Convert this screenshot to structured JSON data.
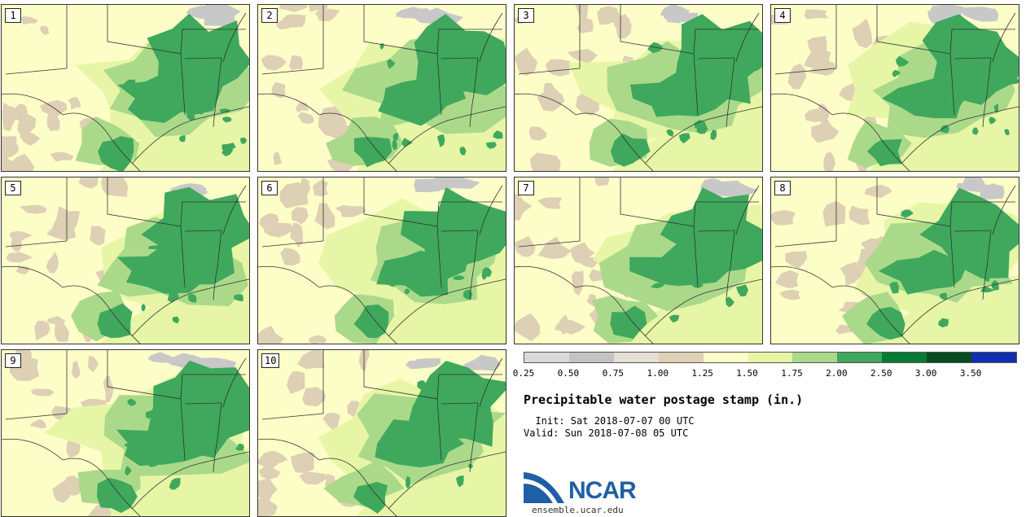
{
  "stamps": [
    {
      "label": "1"
    },
    {
      "label": "2"
    },
    {
      "label": "3"
    },
    {
      "label": "4"
    },
    {
      "label": "5"
    },
    {
      "label": "6"
    },
    {
      "label": "7"
    },
    {
      "label": "8"
    },
    {
      "label": "9"
    },
    {
      "label": "10"
    }
  ],
  "colorbar": {
    "colors": [
      "#dadada",
      "#c3c3c3",
      "#e4e0d4",
      "#ddd0b4",
      "#fdfdc8",
      "#e6f6a6",
      "#abd98a",
      "#3fa85c",
      "#087a36",
      "#074c1f",
      "#1030b0"
    ],
    "ticks": [
      "0.25",
      "0.50",
      "0.75",
      "1.00",
      "1.25",
      "1.50",
      "1.75",
      "2.00",
      "2.50",
      "3.00",
      "3.50"
    ]
  },
  "title": "Precipitable water postage stamp (in.)",
  "init": "  Init: Sat 2018-07-07 00 UTC",
  "valid": "Valid: Sun 2018-07-08 05 UTC",
  "logo": {
    "text": "NCAR",
    "site": "ensemble.ucar.edu"
  }
}
